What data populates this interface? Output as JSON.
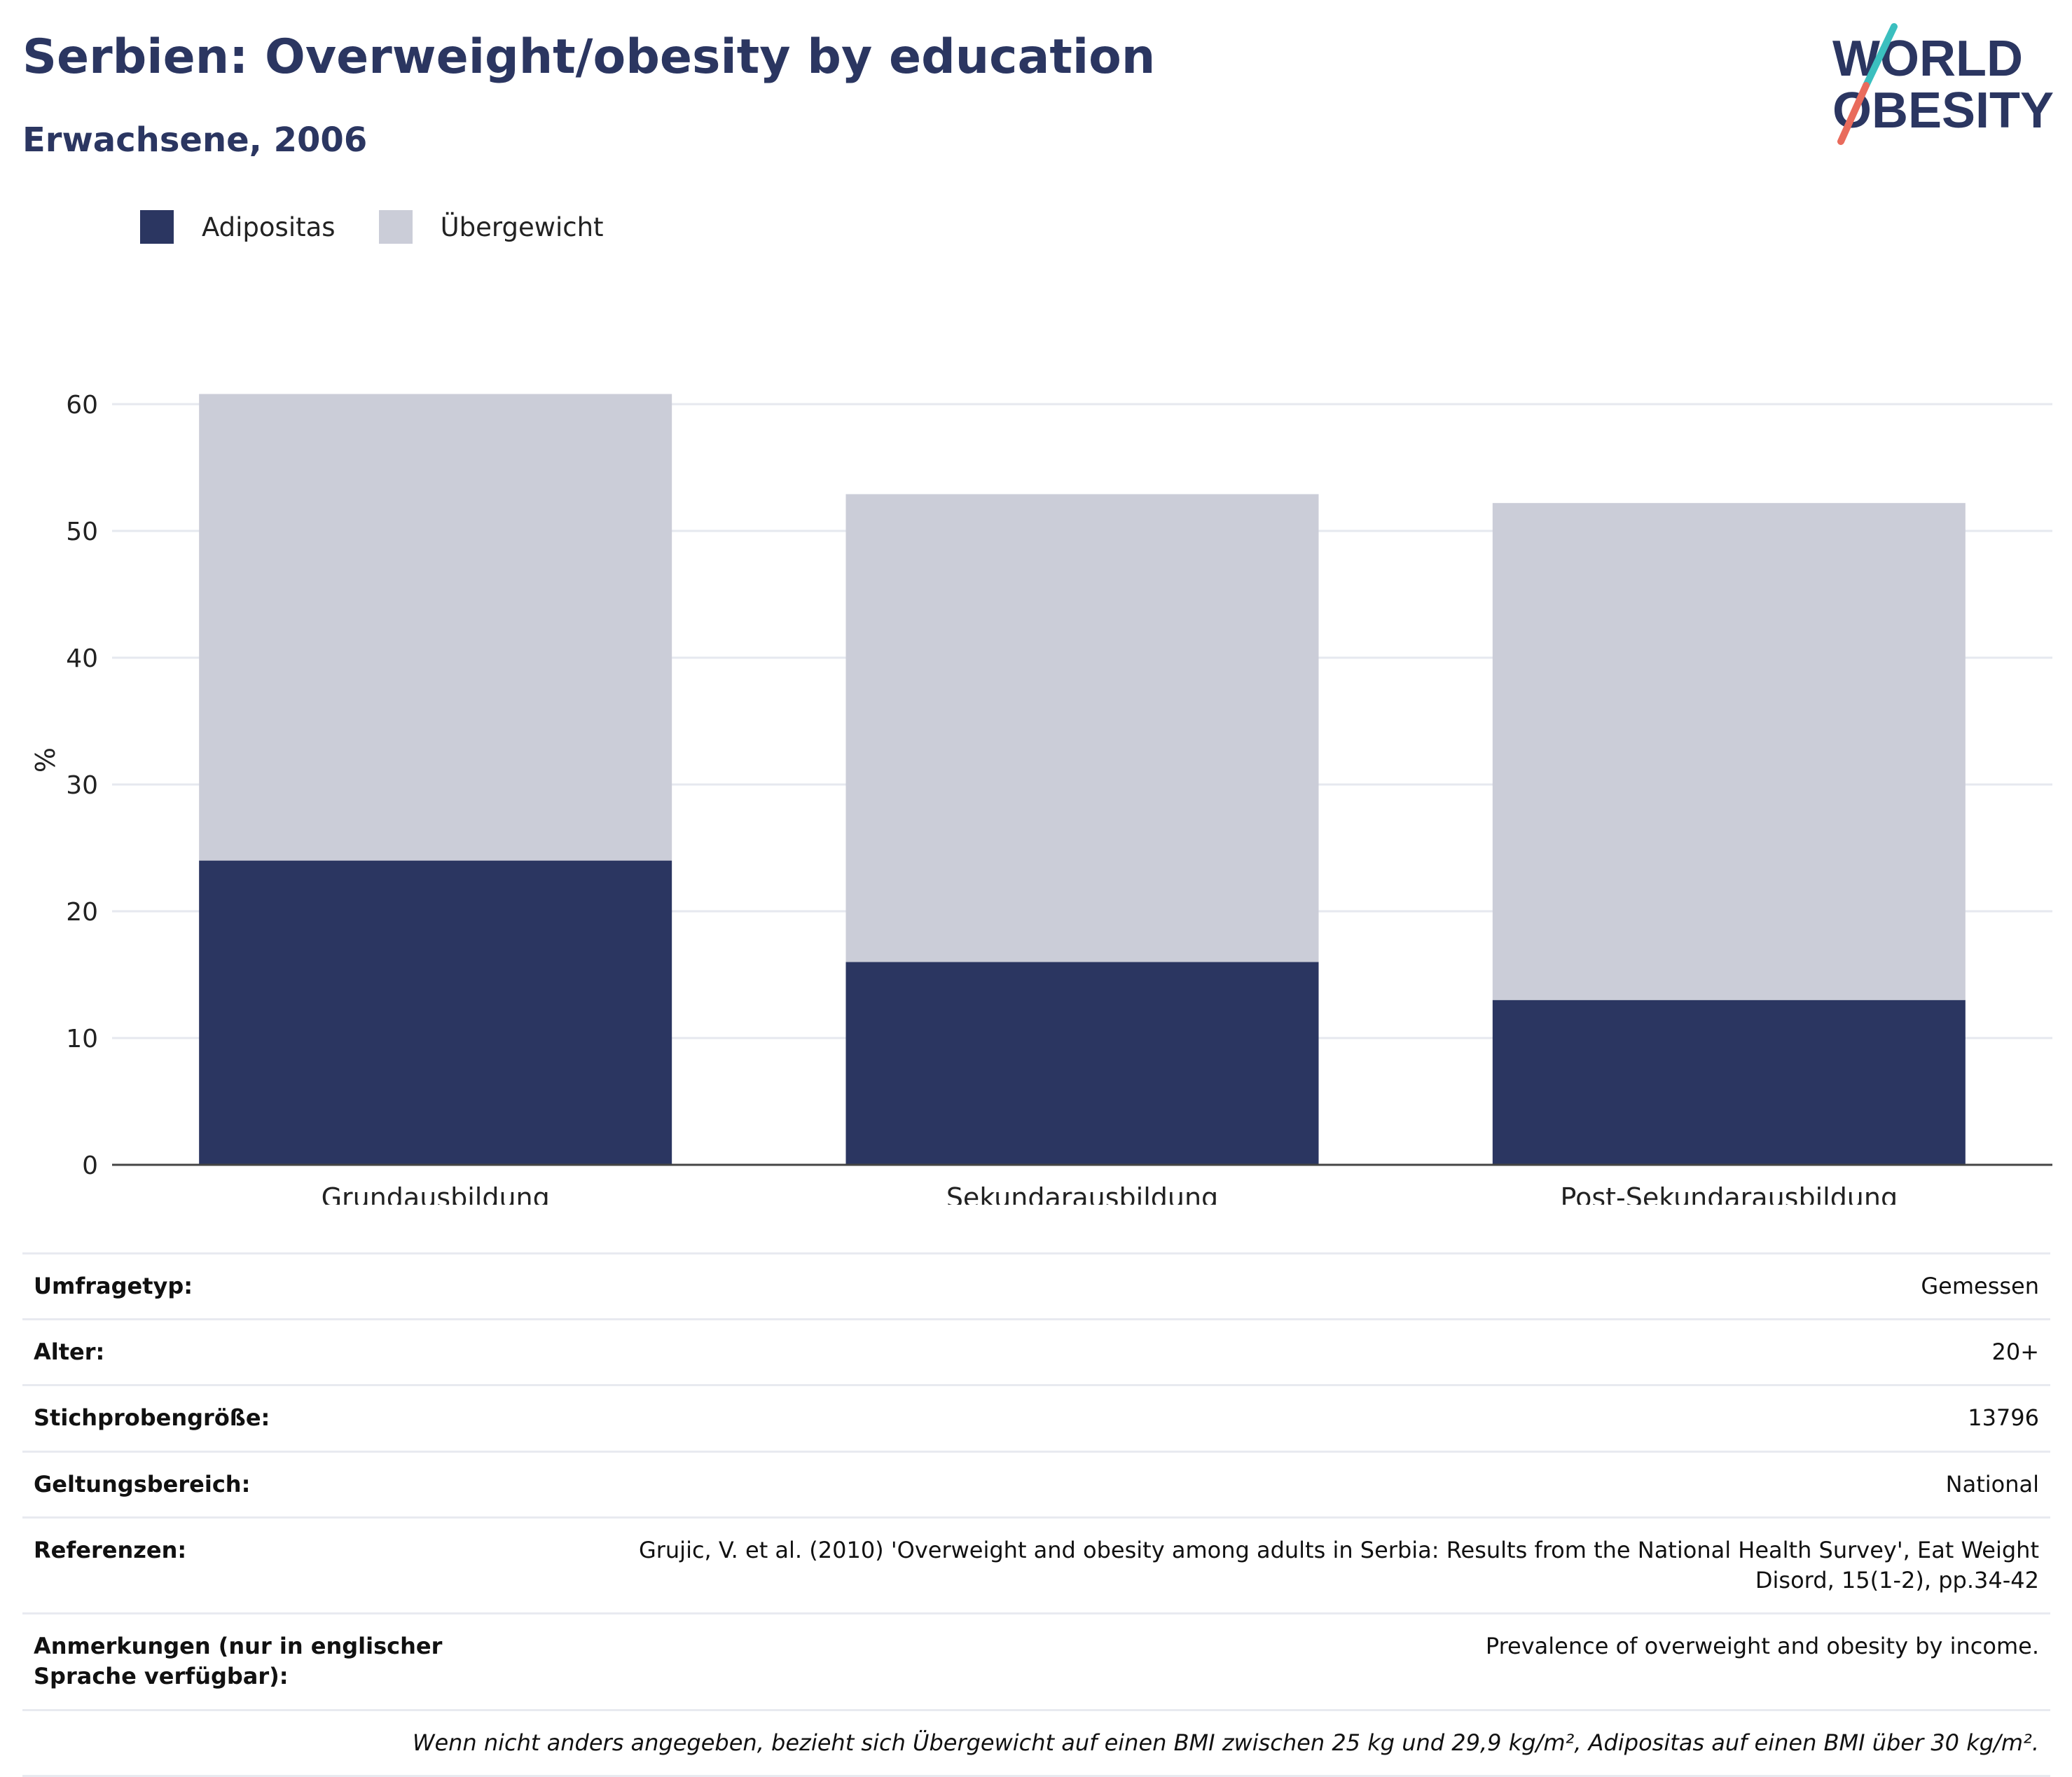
{
  "header": {
    "title": "Serbien: Overweight/obesity by education",
    "subtitle": "Erwachsene, 2006"
  },
  "logo": {
    "line1": "WORLD",
    "line2": "OBESITY"
  },
  "colors": {
    "obesity": "#2b3661",
    "overweight": "#cbcdd8",
    "brand_text": "#2b3661",
    "logo_teal": "#3bbfbf",
    "logo_coral": "#e96b5c"
  },
  "chart_data": {
    "type": "bar",
    "stacked": true,
    "categories": [
      "Grundausbildung",
      "Sekundarausbildung",
      "Post-Sekundarausbildung"
    ],
    "series": [
      {
        "name": "Adipositas",
        "values": [
          24,
          16,
          13
        ]
      },
      {
        "name": "Übergewicht",
        "values": [
          36.8,
          36.9,
          39.2
        ]
      }
    ],
    "ylabel": "%",
    "ylim": [
      0,
      62
    ],
    "yticks": [
      0,
      10,
      20,
      30,
      40,
      50,
      60
    ],
    "grid": true,
    "legend_position": "top-left"
  },
  "info": [
    {
      "label": "Umfragetyp:",
      "value": "Gemessen"
    },
    {
      "label": "Alter:",
      "value": "20+"
    },
    {
      "label": "Stichprobengröße:",
      "value": "13796"
    },
    {
      "label": "Geltungsbereich:",
      "value": "National"
    },
    {
      "label": "Referenzen:",
      "value": "Grujic, V. et al. (2010) 'Overweight and obesity among adults in Serbia: Results from the National Health Survey', Eat Weight Disord, 15(1-2), pp.34-42"
    },
    {
      "label": "Anmerkungen (nur in englischer Sprache verfügbar):",
      "value": "Prevalence of overweight and obesity by income."
    }
  ],
  "footnote": "Wenn nicht anders angegeben, bezieht sich Übergewicht auf einen BMI zwischen 25 kg und 29,9 kg/m², Adipositas auf einen BMI über 30 kg/m²."
}
